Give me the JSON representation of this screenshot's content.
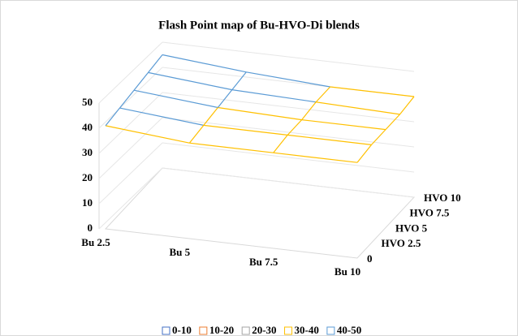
{
  "chart_data": {
    "type": "surface",
    "title": "Flash Point map of Bu-HVO-Di blends",
    "categories": [
      "Bu 2.5",
      "Bu 5",
      "Bu 7.5",
      "Bu 10"
    ],
    "series": [
      {
        "name": "0",
        "values": [
          41,
          38,
          38,
          38
        ]
      },
      {
        "name": "HVO 2.5",
        "values": [
          42,
          39,
          39,
          39
        ]
      },
      {
        "name": "HVO 5",
        "values": [
          43,
          40,
          39,
          39
        ]
      },
      {
        "name": "HVO 7.5",
        "values": [
          44,
          41,
          40,
          39
        ]
      },
      {
        "name": "HVO 10",
        "values": [
          45,
          42,
          40,
          40
        ]
      }
    ],
    "zlim": [
      0,
      50
    ],
    "zticks": [
      0,
      10,
      20,
      30,
      40,
      50
    ],
    "bands": [
      {
        "name": "0-10",
        "color": "#4472c4"
      },
      {
        "name": "10-20",
        "color": "#ed7d31"
      },
      {
        "name": "20-30",
        "color": "#a5a5a5"
      },
      {
        "name": "30-40",
        "color": "#ffc000"
      },
      {
        "name": "40-50",
        "color": "#5b9bd5"
      }
    ],
    "grid": true
  }
}
